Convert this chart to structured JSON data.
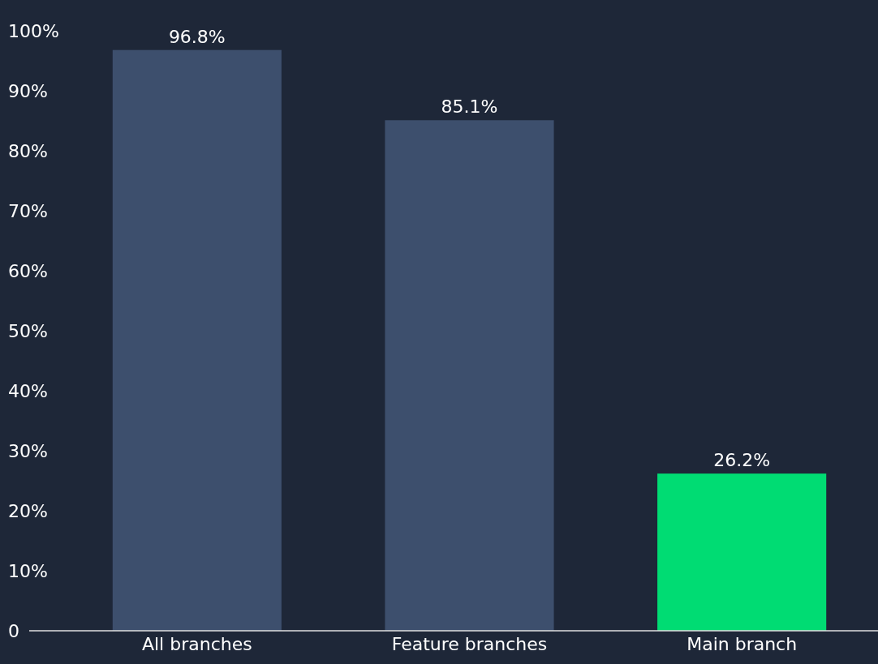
{
  "chart_data": {
    "type": "bar",
    "categories": [
      "All branches",
      "Feature branches",
      "Main branch"
    ],
    "values": [
      96.8,
      85.1,
      26.2
    ],
    "colors": [
      "#3d4f6d",
      "#3d4f6d",
      "#00dc73"
    ],
    "value_labels": [
      "96.8%",
      "85.1%",
      "26.2%"
    ],
    "ylim": [
      0,
      100
    ],
    "yticks": [
      0,
      {
        "value": 10,
        "label": "10%"
      },
      {
        "value": 20,
        "label": "20%"
      },
      {
        "value": 30,
        "label": "30%"
      },
      {
        "value": 40,
        "label": "40%"
      },
      {
        "value": 50,
        "label": "50%"
      },
      {
        "value": 60,
        "label": "60%"
      },
      {
        "value": 70,
        "label": "70%"
      },
      {
        "value": 80,
        "label": "80%"
      },
      {
        "value": 90,
        "label": "90%"
      },
      {
        "value": 100,
        "label": "100%"
      }
    ],
    "grid": false
  }
}
